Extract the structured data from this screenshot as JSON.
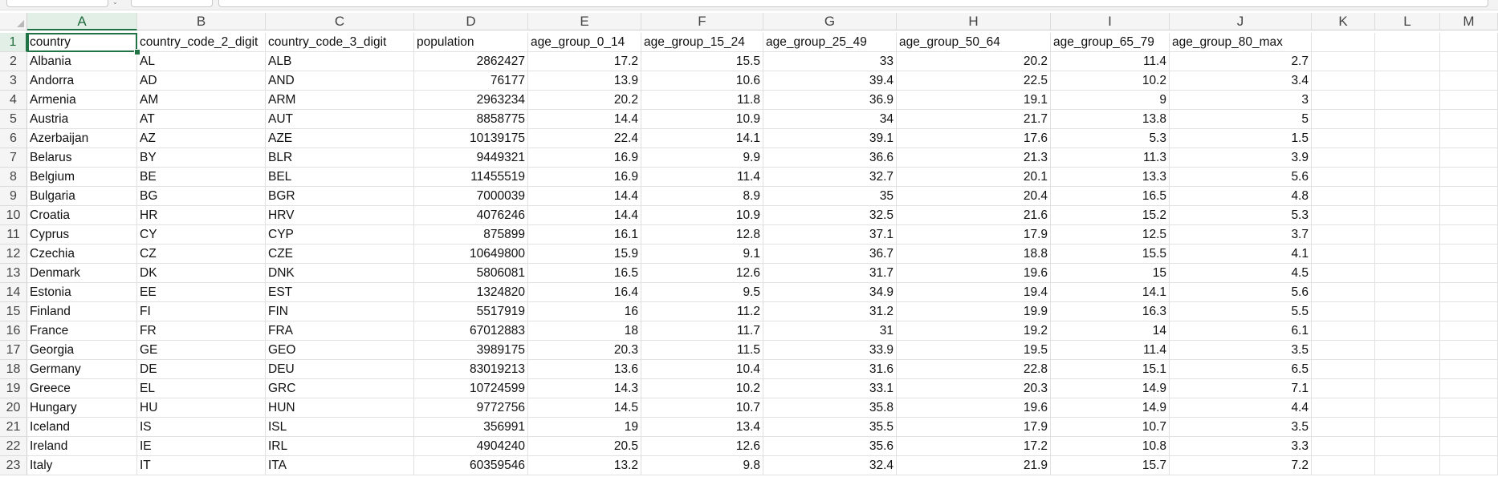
{
  "columns": [
    "A",
    "B",
    "C",
    "D",
    "E",
    "F",
    "G",
    "H",
    "I",
    "J",
    "K",
    "L",
    "M"
  ],
  "selected_column": "A",
  "selected_row": 1,
  "headers": [
    "country",
    "country_code_2_digit",
    "country_code_3_digit",
    "population",
    "age_group_0_14",
    "age_group_15_24",
    "age_group_25_49",
    "age_group_50_64",
    "age_group_65_79",
    "age_group_80_max"
  ],
  "rows": [
    [
      "Albania",
      "AL",
      "ALB",
      "2862427",
      "17.2",
      "15.5",
      "33",
      "20.2",
      "11.4",
      "2.7"
    ],
    [
      "Andorra",
      "AD",
      "AND",
      "76177",
      "13.9",
      "10.6",
      "39.4",
      "22.5",
      "10.2",
      "3.4"
    ],
    [
      "Armenia",
      "AM",
      "ARM",
      "2963234",
      "20.2",
      "11.8",
      "36.9",
      "19.1",
      "9",
      "3"
    ],
    [
      "Austria",
      "AT",
      "AUT",
      "8858775",
      "14.4",
      "10.9",
      "34",
      "21.7",
      "13.8",
      "5"
    ],
    [
      "Azerbaijan",
      "AZ",
      "AZE",
      "10139175",
      "22.4",
      "14.1",
      "39.1",
      "17.6",
      "5.3",
      "1.5"
    ],
    [
      "Belarus",
      "BY",
      "BLR",
      "9449321",
      "16.9",
      "9.9",
      "36.6",
      "21.3",
      "11.3",
      "3.9"
    ],
    [
      "Belgium",
      "BE",
      "BEL",
      "11455519",
      "16.9",
      "11.4",
      "32.7",
      "20.1",
      "13.3",
      "5.6"
    ],
    [
      "Bulgaria",
      "BG",
      "BGR",
      "7000039",
      "14.4",
      "8.9",
      "35",
      "20.4",
      "16.5",
      "4.8"
    ],
    [
      "Croatia",
      "HR",
      "HRV",
      "4076246",
      "14.4",
      "10.9",
      "32.5",
      "21.6",
      "15.2",
      "5.3"
    ],
    [
      "Cyprus",
      "CY",
      "CYP",
      "875899",
      "16.1",
      "12.8",
      "37.1",
      "17.9",
      "12.5",
      "3.7"
    ],
    [
      "Czechia",
      "CZ",
      "CZE",
      "10649800",
      "15.9",
      "9.1",
      "36.7",
      "18.8",
      "15.5",
      "4.1"
    ],
    [
      "Denmark",
      "DK",
      "DNK",
      "5806081",
      "16.5",
      "12.6",
      "31.7",
      "19.6",
      "15",
      "4.5"
    ],
    [
      "Estonia",
      "EE",
      "EST",
      "1324820",
      "16.4",
      "9.5",
      "34.9",
      "19.4",
      "14.1",
      "5.6"
    ],
    [
      "Finland",
      "FI",
      "FIN",
      "5517919",
      "16",
      "11.2",
      "31.2",
      "19.9",
      "16.3",
      "5.5"
    ],
    [
      "France",
      "FR",
      "FRA",
      "67012883",
      "18",
      "11.7",
      "31",
      "19.2",
      "14",
      "6.1"
    ],
    [
      "Georgia",
      "GE",
      "GEO",
      "3989175",
      "20.3",
      "11.5",
      "33.9",
      "19.5",
      "11.4",
      "3.5"
    ],
    [
      "Germany",
      "DE",
      "DEU",
      "83019213",
      "13.6",
      "10.4",
      "31.6",
      "22.8",
      "15.1",
      "6.5"
    ],
    [
      "Greece",
      "EL",
      "GRC",
      "10724599",
      "14.3",
      "10.2",
      "33.1",
      "20.3",
      "14.9",
      "7.1"
    ],
    [
      "Hungary",
      "HU",
      "HUN",
      "9772756",
      "14.5",
      "10.7",
      "35.8",
      "19.6",
      "14.9",
      "4.4"
    ],
    [
      "Iceland",
      "IS",
      "ISL",
      "356991",
      "19",
      "13.4",
      "35.5",
      "17.9",
      "10.7",
      "3.5"
    ],
    [
      "Ireland",
      "IE",
      "IRL",
      "4904240",
      "20.5",
      "12.6",
      "35.6",
      "17.2",
      "10.8",
      "3.3"
    ],
    [
      "Italy",
      "IT",
      "ITA",
      "60359546",
      "13.2",
      "9.8",
      "32.4",
      "21.9",
      "15.7",
      "7.2"
    ]
  ]
}
